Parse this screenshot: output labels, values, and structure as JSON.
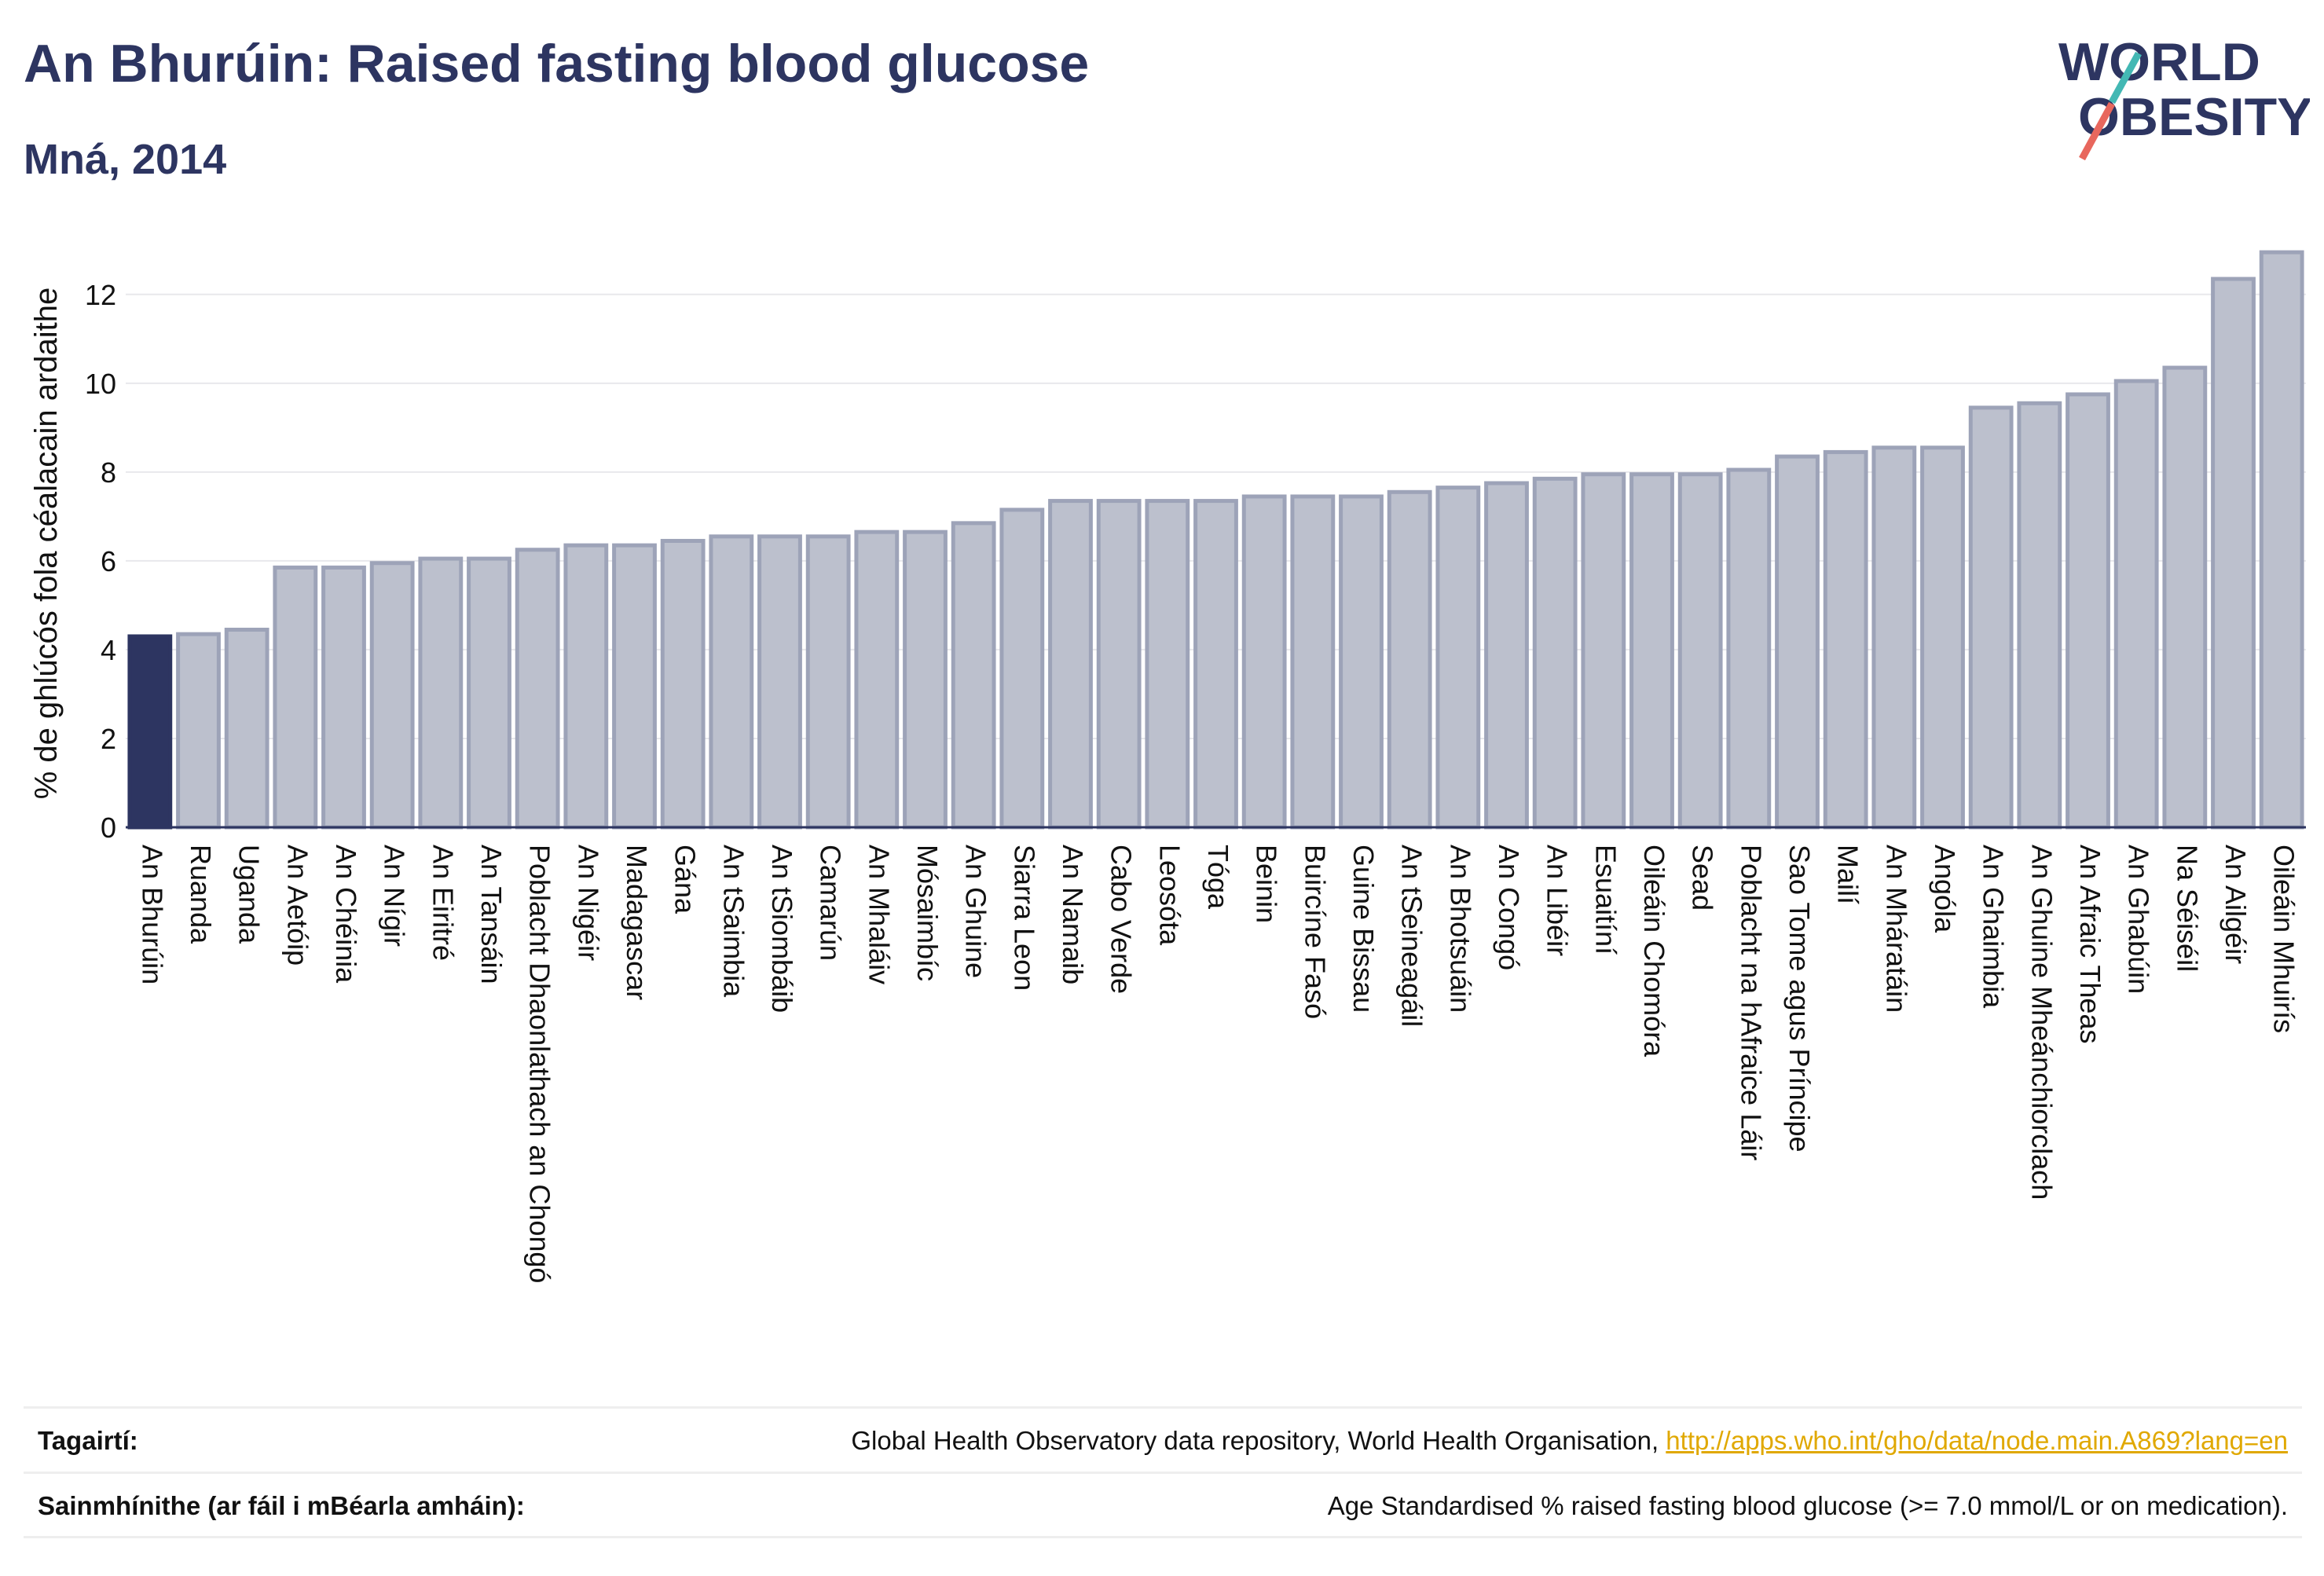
{
  "header": {
    "title": "An Bhurúin: Raised fasting blood glucose",
    "subtitle": "Mná, 2014"
  },
  "logo": {
    "line1": "WORLD",
    "line2": "OBESITY"
  },
  "chart_data": {
    "type": "bar",
    "title": "An Bhurúin: Raised fasting blood glucose",
    "subtitle": "Mná, 2014",
    "xlabel": "",
    "ylabel": "% de ghlúcós fola céalacain ardaithe",
    "ylim": [
      0,
      13.5
    ],
    "yticks": [
      0,
      2,
      4,
      6,
      8,
      10,
      12
    ],
    "grid": true,
    "highlight_index": 0,
    "colors": {
      "highlight": "#2d3561",
      "bar_fill": "#bcc0cd",
      "bar_stroke": "#9da3b8"
    },
    "categories": [
      "An Bhurúin",
      "Ruanda",
      "Uganda",
      "An Aetóip",
      "An Chéinia",
      "An Nígir",
      "An Eiritré",
      "An Tansáin",
      "Poblacht Dhaonlathach an Chongó",
      "An Nigéir",
      "Madagascar",
      "Gána",
      "An tSaimbia",
      "An tSiombáib",
      "Camarún",
      "An Mhaláiv",
      "Mósaimbíc",
      "An Ghuine",
      "Siarra Leon",
      "An Namaib",
      "Cabo Verde",
      "Leosóta",
      "Tóga",
      "Beinin",
      "Buircíne Fasó",
      "Guine Bissau",
      "An tSeineagáil",
      "An Bhotsuáin",
      "An Congó",
      "An Libéir",
      "Esuaitíní",
      "Oileáin Chomóra",
      "Sead",
      "Poblacht na hAfraice Láir",
      "Sao Tome agus Príncipe",
      "Mailí",
      "An Mháratáin",
      "Angóla",
      "An Ghaimbia",
      "An Ghuine Mheánchiorclach",
      "An Afraic Theas",
      "An Ghabúin",
      "Na Séiséil",
      "An Ailgéir",
      "Oileáin Mhuirís"
    ],
    "values": [
      4.3,
      4.35,
      4.45,
      5.85,
      5.85,
      5.95,
      6.05,
      6.05,
      6.25,
      6.35,
      6.35,
      6.45,
      6.55,
      6.55,
      6.55,
      6.65,
      6.65,
      6.85,
      7.15,
      7.35,
      7.35,
      7.35,
      7.35,
      7.45,
      7.45,
      7.45,
      7.55,
      7.65,
      7.75,
      7.85,
      7.95,
      7.95,
      7.95,
      8.05,
      8.35,
      8.45,
      8.55,
      8.55,
      9.45,
      9.55,
      9.75,
      10.05,
      10.35,
      12.35,
      12.95
    ]
  },
  "footer": {
    "references_label": "Tagairtí:",
    "references_text": "Global Health Observatory data repository, World Health Organisation, ",
    "references_link": "http://apps.who.int/gho/data/node.main.A869?lang=en",
    "definitions_label": "Sainmhínithe (ar fáil i mBéarla amháin):",
    "definitions_text": "Age Standardised % raised fasting blood glucose (>= 7.0 mmol/L or on medication)."
  }
}
